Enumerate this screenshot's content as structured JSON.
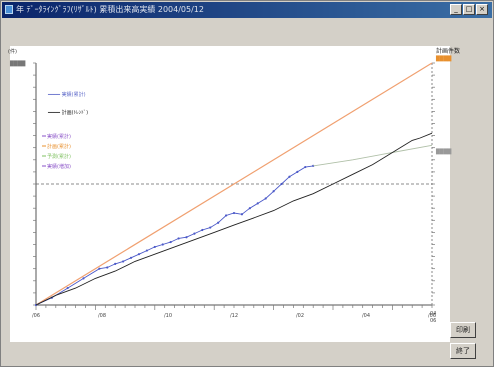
{
  "window": {
    "title": "年 ﾃﾞｰﾀﾗｲﾝｸﾞﾗﾌ(ﾘｻﾞﾙﾄ) 累積出来高実績 2004/05/12",
    "controls": [
      "_",
      "□",
      "×"
    ]
  },
  "chart_data": {
    "type": "line",
    "y_unit": "(件)",
    "y_max_label": "████",
    "right_header": "計画件数",
    "right_header_sub": "████",
    "right_end_label": "████",
    "x_ticks": [
      "/06",
      "/08",
      "/10",
      "/12",
      "/02",
      "/04",
      "/06"
    ],
    "x_end_label": [
      "04",
      "06"
    ],
    "legend": [
      {
        "label": "━━━━ 実績(累計)",
        "color": "#5a66c8"
      },
      {
        "label": "━━━━ 計画(ﾄﾚﾝﾄﾞ)",
        "color": "#222222"
      }
    ],
    "legend2": [
      {
        "label": "実績(累計)",
        "color": "#8a52c8"
      },
      {
        "label": "計画(累計)",
        "color": "#e8902e"
      },
      {
        "label": "予測(累計)",
        "color": "#7fc060"
      },
      {
        "label": "実績(増加)",
        "color": "#8a52c8"
      }
    ],
    "ylim": [
      0,
      100
    ],
    "xlim": [
      0,
      100
    ],
    "reference_level": 50,
    "series": [
      {
        "name": "計画",
        "color": "#f0a070",
        "x": [
          0,
          100
        ],
        "y": [
          0,
          100
        ]
      },
      {
        "name": "実績",
        "color": "#4a58c8",
        "x": [
          0,
          4,
          8,
          12,
          16,
          18,
          20,
          22,
          24,
          26,
          28,
          30,
          32,
          34,
          36,
          38,
          40,
          42,
          44,
          46,
          48,
          50,
          52,
          54,
          56,
          58,
          60,
          62,
          64,
          66,
          68,
          70
        ],
        "y": [
          0,
          3,
          7,
          11,
          15,
          15.5,
          17,
          18,
          19.5,
          21,
          22.5,
          24,
          25,
          26,
          27.5,
          28,
          29.5,
          31,
          32,
          34,
          37,
          38,
          37.5,
          40,
          42,
          44,
          47,
          50,
          53,
          55,
          57,
          57.5
        ]
      },
      {
        "name": "予測",
        "color": "#b0c0a8",
        "x": [
          70,
          80,
          90,
          100
        ],
        "y": [
          57.5,
          60,
          63,
          66
        ]
      },
      {
        "name": "実績(トレンド)",
        "color": "#222222",
        "x": [
          0,
          5,
          10,
          15,
          20,
          25,
          30,
          35,
          40,
          45,
          50,
          55,
          60,
          65,
          70,
          75,
          80,
          85,
          90,
          95,
          97,
          100
        ],
        "y": [
          0,
          4,
          7,
          11,
          14,
          18,
          21,
          24,
          27,
          30,
          33,
          36,
          39,
          43,
          46,
          50,
          54,
          58,
          63,
          68,
          69,
          71
        ]
      }
    ]
  },
  "buttons": {
    "print": "印刷",
    "close": "終了"
  }
}
